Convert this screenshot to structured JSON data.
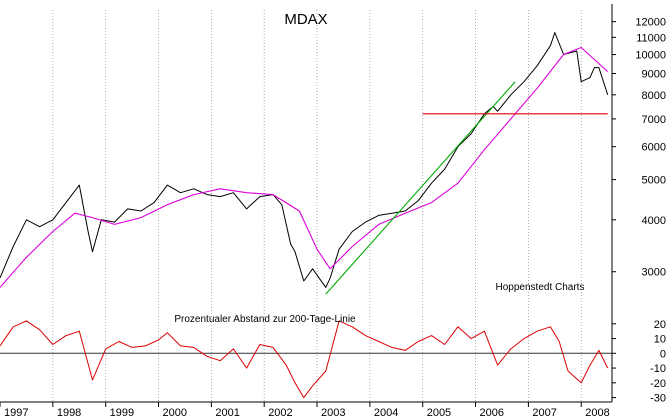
{
  "chart_data": [
    {
      "type": "line",
      "title": "MDAX",
      "source_label": "Hoppenstedt Charts",
      "y_scale": "log",
      "ylim": [
        2400,
        12800
      ],
      "xlim": [
        "1997-01-01",
        "2008-07-31"
      ],
      "x_tick_labels": [
        "1997",
        "1998",
        "1999",
        "2000",
        "2001",
        "2002",
        "2003",
        "2004",
        "2005",
        "2006",
        "2007",
        "2008"
      ],
      "y_tick_labels": [
        {
          "value": 12000,
          "label": "12000"
        },
        {
          "value": 11000,
          "label": "11000"
        },
        {
          "value": 10000,
          "label": "10000"
        },
        {
          "value": 9000,
          "label": "9000"
        },
        {
          "value": 8000,
          "label": "8000"
        },
        {
          "value": 7000,
          "label": "7000"
        },
        {
          "value": 6000,
          "label": "6000"
        },
        {
          "value": 5000,
          "label": "5000"
        },
        {
          "value": 4000,
          "label": "4000"
        },
        {
          "value": 3000,
          "label": "3000"
        }
      ],
      "grid": "vertical dotted",
      "series": [
        {
          "color": "#000000",
          "x": [
            "1997-01",
            "1997-04",
            "1997-07",
            "1997-10",
            "1998-01",
            "1998-04",
            "1998-07",
            "1998-09",
            "1998-10",
            "1998-12",
            "1999-03",
            "1999-06",
            "1999-09",
            "1999-12",
            "2000-03",
            "2000-06",
            "2000-09",
            "2000-12",
            "2001-03",
            "2001-06",
            "2001-09",
            "2001-12",
            "2002-03",
            "2002-05",
            "2002-07",
            "2002-08",
            "2002-10",
            "2002-12",
            "2003-03",
            "2003-04",
            "2003-06",
            "2003-09",
            "2003-12",
            "2004-03",
            "2004-06",
            "2004-09",
            "2004-12",
            "2005-03",
            "2005-06",
            "2005-09",
            "2005-12",
            "2006-03",
            "2006-05",
            "2006-06",
            "2006-09",
            "2006-12",
            "2007-03",
            "2007-06",
            "2007-07",
            "2007-09",
            "2007-12",
            "2008-01",
            "2008-03",
            "2008-04",
            "2008-05",
            "2008-07"
          ],
          "y": [
            2900,
            3450,
            4000,
            3850,
            4000,
            4400,
            4850,
            3750,
            3350,
            4000,
            3950,
            4250,
            4200,
            4400,
            4850,
            4650,
            4750,
            4600,
            4550,
            4650,
            4250,
            4550,
            4600,
            4350,
            3500,
            3350,
            2850,
            3050,
            2750,
            2900,
            3400,
            3750,
            3950,
            4100,
            4150,
            4200,
            4450,
            4900,
            5300,
            6000,
            6450,
            7200,
            7500,
            7300,
            8000,
            8600,
            9400,
            10500,
            11300,
            10000,
            10200,
            8600,
            8800,
            9300,
            9300,
            8000
          ]
        },
        {
          "color": "#dd00dd",
          "x": [
            "1997-01",
            "1997-07",
            "1998-01",
            "1998-06",
            "1998-10",
            "1999-03",
            "1999-09",
            "2000-03",
            "2000-09",
            "2001-03",
            "2001-09",
            "2002-03",
            "2002-09",
            "2003-01",
            "2003-04",
            "2003-09",
            "2004-03",
            "2004-09",
            "2005-03",
            "2005-09",
            "2006-03",
            "2006-09",
            "2007-03",
            "2007-09",
            "2008-01",
            "2008-07"
          ],
          "y": [
            2750,
            3250,
            3750,
            4150,
            4050,
            3900,
            4050,
            4350,
            4600,
            4750,
            4650,
            4600,
            4200,
            3400,
            3050,
            3450,
            3900,
            4150,
            4400,
            4900,
            5900,
            7000,
            8300,
            10000,
            10400,
            9100
          ]
        },
        {
          "color": "#00aa00",
          "x": [
            "2003-03",
            "2006-10"
          ],
          "y": [
            2650,
            8600
          ]
        },
        {
          "color": "#dd0000",
          "x": [
            "2005-01",
            "2008-07"
          ],
          "y": [
            7200,
            7200
          ]
        }
      ]
    },
    {
      "type": "line",
      "title": "Prozentualer Abstand zur 200-Tage-Linie",
      "ylim": [
        -33,
        28
      ],
      "y_tick_labels": [
        {
          "value": 20,
          "label": "20"
        },
        {
          "value": 10,
          "label": "10"
        },
        {
          "value": 0,
          "label": "0"
        },
        {
          "value": -10,
          "label": "-10"
        },
        {
          "value": -20,
          "label": "-20"
        },
        {
          "value": -30,
          "label": "-30"
        }
      ],
      "reference_line": 0,
      "series": [
        {
          "color": "#dd0000",
          "x": [
            "1997-01",
            "1997-04",
            "1997-07",
            "1997-10",
            "1998-01",
            "1998-04",
            "1998-07",
            "1998-10",
            "1999-01",
            "1999-04",
            "1999-07",
            "1999-10",
            "2000-01",
            "2000-03",
            "2000-06",
            "2000-09",
            "2000-12",
            "2001-03",
            "2001-06",
            "2001-09",
            "2001-12",
            "2002-03",
            "2002-06",
            "2002-08",
            "2002-10",
            "2002-12",
            "2003-03",
            "2003-06",
            "2003-09",
            "2003-12",
            "2004-03",
            "2004-06",
            "2004-09",
            "2004-12",
            "2005-03",
            "2005-06",
            "2005-09",
            "2005-12",
            "2006-03",
            "2006-06",
            "2006-09",
            "2006-12",
            "2007-03",
            "2007-06",
            "2007-08",
            "2007-10",
            "2008-01",
            "2008-03",
            "2008-05",
            "2008-07"
          ],
          "y": [
            5,
            18,
            22,
            16,
            6,
            12,
            15,
            -18,
            3,
            8,
            4,
            5,
            9,
            14,
            5,
            4,
            -2,
            -5,
            3,
            -10,
            6,
            4,
            -8,
            -20,
            -30,
            -22,
            -12,
            22,
            18,
            12,
            8,
            4,
            2,
            8,
            12,
            6,
            18,
            10,
            15,
            -8,
            3,
            10,
            15,
            18,
            8,
            -12,
            -20,
            -8,
            2,
            -10
          ]
        }
      ]
    }
  ]
}
